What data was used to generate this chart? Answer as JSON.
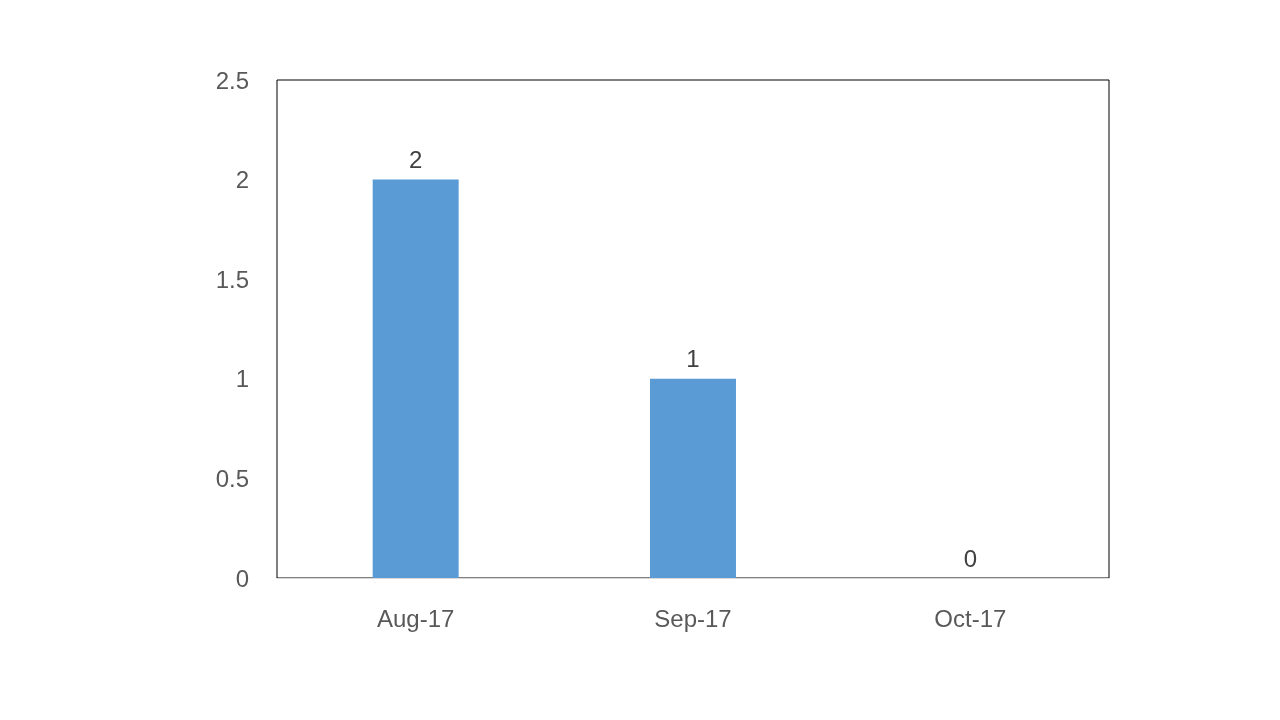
{
  "chart_data": {
    "type": "bar",
    "categories": [
      "Aug-17",
      "Sep-17",
      "Oct-17"
    ],
    "values": [
      2,
      1,
      0
    ],
    "color": "#5b9bd5",
    "ylim": [
      0,
      2.5
    ],
    "yticks": [
      0,
      0.5,
      1,
      1.5,
      2,
      2.5
    ],
    "data_labels": true
  }
}
